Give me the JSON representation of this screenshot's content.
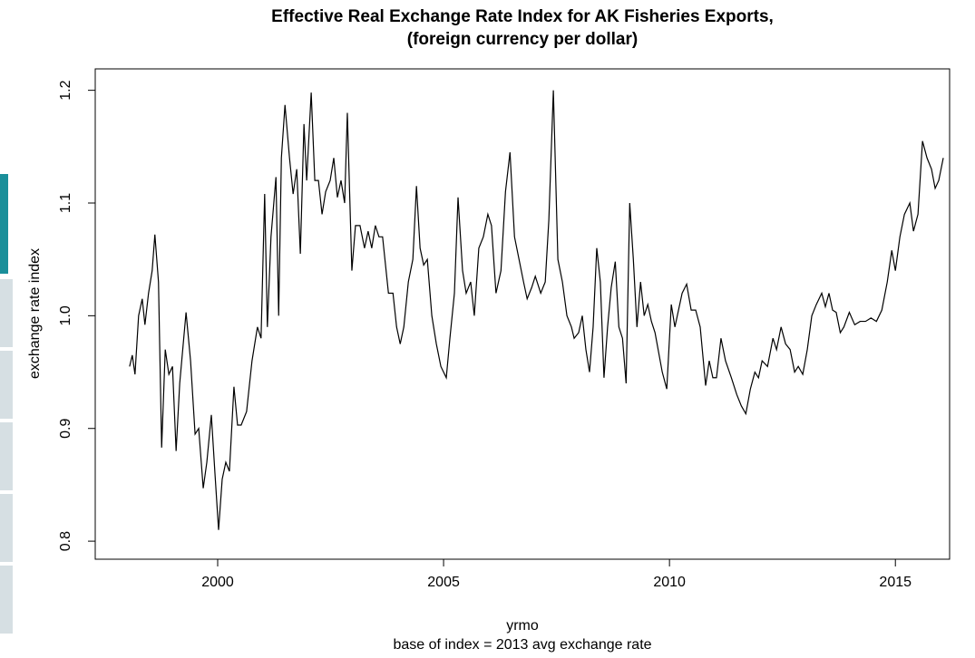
{
  "chart_data": {
    "type": "line",
    "title": "Effective Real Exchange Rate Index for AK Fisheries Exports,",
    "subtitle": "(foreign currency per dollar)",
    "x_label": "yrmo",
    "y_label": "exchange rate index",
    "caption": "base of index = 2013 avg exchange rate",
    "xlim": [
      1997.29,
      2016.2
    ],
    "ylim": [
      0.784,
      1.219
    ],
    "xticks": [
      2000,
      2005,
      2010,
      2015
    ],
    "yticks": [
      0.8,
      0.9,
      {
        "value": 1,
        "label": "1.0"
      },
      1.1,
      1.2
    ],
    "color": "#000000",
    "x": [
      1998.05,
      1998.11,
      1998.17,
      1998.25,
      1998.33,
      1998.39,
      1998.47,
      1998.55,
      1998.61,
      1998.69,
      1998.76,
      1998.84,
      1998.92,
      1999.0,
      1999.08,
      1999.16,
      1999.3,
      1999.4,
      1999.5,
      1999.58,
      1999.68,
      1999.76,
      1999.86,
      1999.94,
      2000.02,
      2000.1,
      2000.18,
      2000.26,
      2000.36,
      2000.44,
      2000.52,
      2000.64,
      2000.76,
      2000.88,
      2000.96,
      2001.04,
      2001.1,
      2001.18,
      2001.29,
      2001.35,
      2001.41,
      2001.49,
      2001.59,
      2001.67,
      2001.75,
      2001.83,
      2001.91,
      2001.97,
      2002.07,
      2002.15,
      2002.23,
      2002.31,
      2002.39,
      2002.49,
      2002.57,
      2002.65,
      2002.73,
      2002.81,
      2002.87,
      2002.97,
      2003.05,
      2003.15,
      2003.25,
      2003.33,
      2003.41,
      2003.49,
      2003.57,
      2003.65,
      2003.78,
      2003.88,
      2003.96,
      2004.04,
      2004.12,
      2004.22,
      2004.32,
      2004.4,
      2004.48,
      2004.56,
      2004.64,
      2004.74,
      2004.84,
      2004.94,
      2005.06,
      2005.14,
      2005.24,
      2005.32,
      2005.42,
      2005.5,
      2005.6,
      2005.68,
      2005.78,
      2005.88,
      2005.98,
      2006.06,
      2006.16,
      2006.27,
      2006.37,
      2006.47,
      2006.57,
      2006.67,
      2006.77,
      2006.85,
      2006.95,
      2007.03,
      2007.15,
      2007.25,
      2007.33,
      2007.43,
      2007.53,
      2007.63,
      2007.73,
      2007.83,
      2007.89,
      2007.99,
      2008.07,
      2008.15,
      2008.23,
      2008.31,
      2008.39,
      2008.47,
      2008.55,
      2008.63,
      2008.71,
      2008.8,
      2008.88,
      2008.96,
      2009.04,
      2009.12,
      2009.2,
      2009.28,
      2009.36,
      2009.44,
      2009.52,
      2009.6,
      2009.68,
      2009.84,
      2009.94,
      2010.04,
      2010.12,
      2010.2,
      2010.28,
      2010.38,
      2010.48,
      2010.58,
      2010.68,
      2010.8,
      2010.88,
      2010.96,
      2011.04,
      2011.14,
      2011.24,
      2011.37,
      2011.49,
      2011.59,
      2011.69,
      2011.79,
      2011.89,
      2011.97,
      2012.05,
      2012.17,
      2012.29,
      2012.37,
      2012.47,
      2012.57,
      2012.67,
      2012.77,
      2012.85,
      2012.95,
      2013.05,
      2013.15,
      2013.25,
      2013.37,
      2013.45,
      2013.53,
      2013.61,
      2013.69,
      2013.78,
      2013.86,
      2013.98,
      2014.1,
      2014.22,
      2014.34,
      2014.46,
      2014.58,
      2014.7,
      2014.82,
      2014.92,
      2015.0,
      2015.1,
      2015.2,
      2015.32,
      2015.4,
      2015.5,
      2015.6,
      2015.7,
      2015.8,
      2015.88,
      2015.96,
      2016.06
    ],
    "values": [
      0.955,
      0.965,
      0.948,
      1.0,
      1.015,
      0.992,
      1.02,
      1.04,
      1.072,
      1.03,
      0.883,
      0.97,
      0.948,
      0.955,
      0.88,
      0.94,
      1.003,
      0.96,
      0.895,
      0.9,
      0.847,
      0.87,
      0.912,
      0.86,
      0.81,
      0.855,
      0.87,
      0.862,
      0.937,
      0.903,
      0.903,
      0.915,
      0.96,
      0.99,
      0.98,
      1.108,
      0.99,
      1.07,
      1.123,
      1.0,
      1.14,
      1.187,
      1.14,
      1.108,
      1.13,
      1.055,
      1.17,
      1.12,
      1.198,
      1.12,
      1.12,
      1.09,
      1.11,
      1.12,
      1.14,
      1.105,
      1.12,
      1.1,
      1.18,
      1.04,
      1.08,
      1.08,
      1.06,
      1.075,
      1.06,
      1.08,
      1.07,
      1.07,
      1.02,
      1.02,
      0.99,
      0.975,
      0.99,
      1.03,
      1.05,
      1.115,
      1.06,
      1.045,
      1.05,
      1.0,
      0.975,
      0.955,
      0.945,
      0.98,
      1.02,
      1.105,
      1.04,
      1.02,
      1.03,
      1.0,
      1.06,
      1.07,
      1.09,
      1.08,
      1.02,
      1.04,
      1.11,
      1.145,
      1.07,
      1.05,
      1.03,
      1.015,
      1.025,
      1.035,
      1.02,
      1.03,
      1.085,
      1.2,
      1.05,
      1.03,
      1.0,
      0.99,
      0.98,
      0.985,
      1.0,
      0.97,
      0.95,
      0.99,
      1.06,
      1.03,
      0.945,
      0.99,
      1.025,
      1.048,
      0.99,
      0.98,
      0.94,
      1.1,
      1.05,
      0.99,
      1.03,
      1.0,
      1.01,
      0.995,
      0.985,
      0.95,
      0.935,
      1.01,
      0.99,
      1.005,
      1.02,
      1.028,
      1.005,
      1.005,
      0.99,
      0.938,
      0.96,
      0.945,
      0.945,
      0.98,
      0.96,
      0.945,
      0.93,
      0.92,
      0.913,
      0.935,
      0.95,
      0.945,
      0.96,
      0.955,
      0.98,
      0.97,
      0.99,
      0.975,
      0.97,
      0.95,
      0.955,
      0.948,
      0.97,
      1.0,
      1.01,
      1.02,
      1.008,
      1.02,
      1.005,
      1.003,
      0.985,
      0.99,
      1.003,
      0.992,
      0.995,
      0.995,
      0.998,
      0.995,
      1.005,
      1.03,
      1.058,
      1.04,
      1.07,
      1.09,
      1.1,
      1.075,
      1.09,
      1.155,
      1.14,
      1.13,
      1.113,
      1.12,
      1.14
    ]
  }
}
